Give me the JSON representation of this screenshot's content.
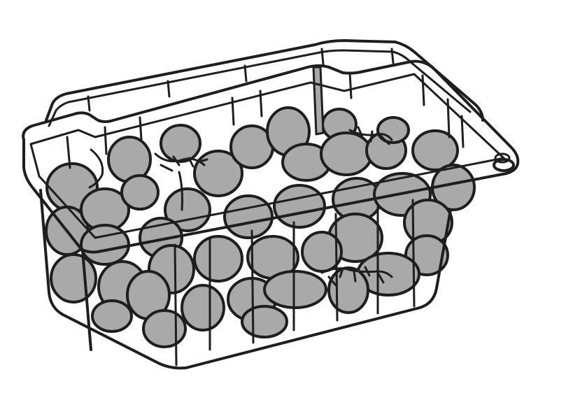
{
  "illustration": {
    "subject_icon": "grape-punnet-icon",
    "colors": {
      "line": "#1e1e1e",
      "grape_fill": "#a9a9a9",
      "background": "#ffffff"
    }
  }
}
